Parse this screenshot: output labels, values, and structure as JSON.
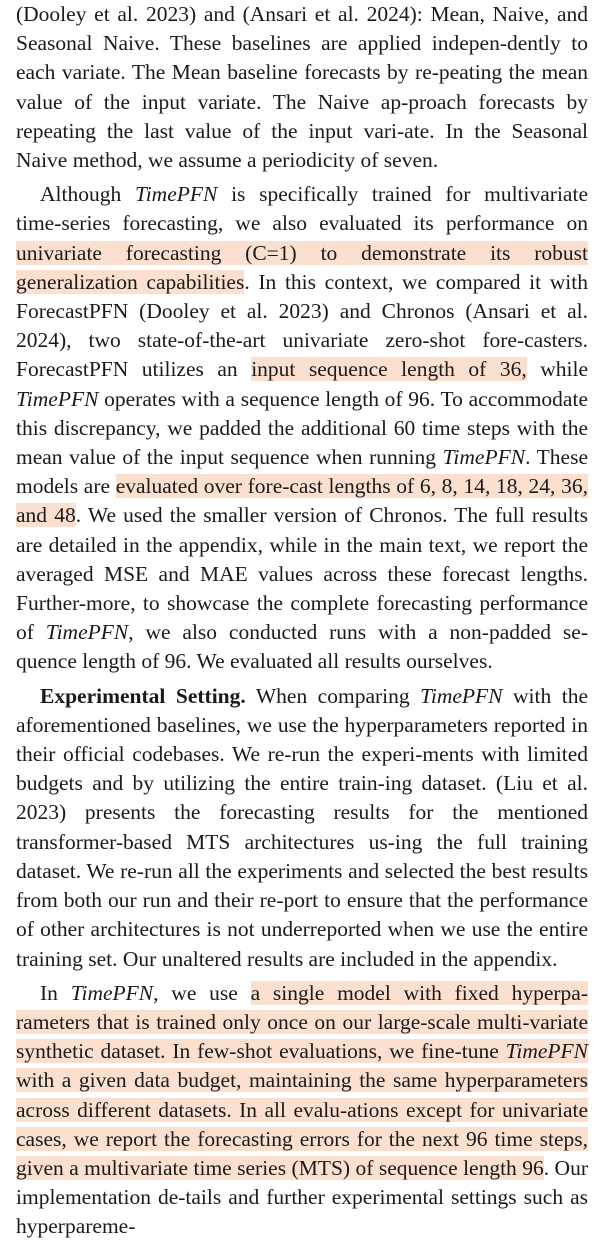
{
  "p1": {
    "t1": "(Dooley et al. 2023) and (Ansari et al. 2024): Mean, Naive, and Seasonal Naive. These baselines are applied indepen-dently to each variate. The Mean baseline forecasts by re-peating the mean value of the input variate. The Naive ap-proach forecasts by repeating the last value of the input vari-ate. In the Seasonal Naive method, we assume a periodicity of seven."
  },
  "p2": {
    "t1": "Although ",
    "model": "TimePFN",
    "t2": " is specifically trained for multivariate time-series forecasting, we also evaluated its performance on ",
    "h1": "univariate forecasting (C=1) to demonstrate its robust generalization capabilities",
    "t3": ". In this context, we compared it with ForecastPFN (Dooley et al. 2023) and Chronos (Ansari et al. 2024), two state-of-the-art univariate zero-shot fore-casters. ForecastPFN utilizes an ",
    "h2": "input sequence length of 36,",
    "t4": " while ",
    "t5": " operates with a sequence length of 96. To accommodate this discrepancy, we padded the additional 60 time steps with the mean value of the input sequence when running ",
    "t6": ". These models are ",
    "h3": "evaluated over fore-cast lengths of 6, 8, 14, 18, 24, 36, and 48",
    "t7": ". We used the smaller version of Chronos. The full results are detailed in the appendix, while in the main text, we report the averaged MSE and MAE values across these forecast lengths. Further-more, to showcase the complete forecasting performance of ",
    "t8": ", we also conducted runs with a non-padded se-quence length of 96. We evaluated all results ourselves."
  },
  "p3": {
    "heading": "Experimental Setting.",
    "t1": " When comparing ",
    "t2": " with the aforementioned baselines, we use the hyperparameters reported in their official codebases. We re-run the experi-ments with limited budgets and by utilizing the entire train-ing dataset. (Liu et al. 2023) presents the forecasting results for the mentioned transformer-based MTS architectures us-ing the full training dataset. We re-run all the experiments and selected the best results from both our run and their re-port to ensure that the performance of other architectures is not underreported when we use the entire training set. Our unaltered results are included in the appendix."
  },
  "p4": {
    "t1": "In ",
    "t2": ", we use ",
    "h1a": "a single model with fixed hyperpa-rameters that is trained only once on our large-scale multi-variate synthetic dataset. In few-shot evaluations, we fine-tune ",
    "h1b": " with a given data budget, maintaining the same hyperparameters across different datasets. In all evalu-ations except for univariate cases, we report the forecasting errors for the next 96 time steps, given a multivariate time series (MTS) of sequence length 96",
    "t3": ". Our implementation de-tails and further experimental settings such as hyperpareme-"
  }
}
